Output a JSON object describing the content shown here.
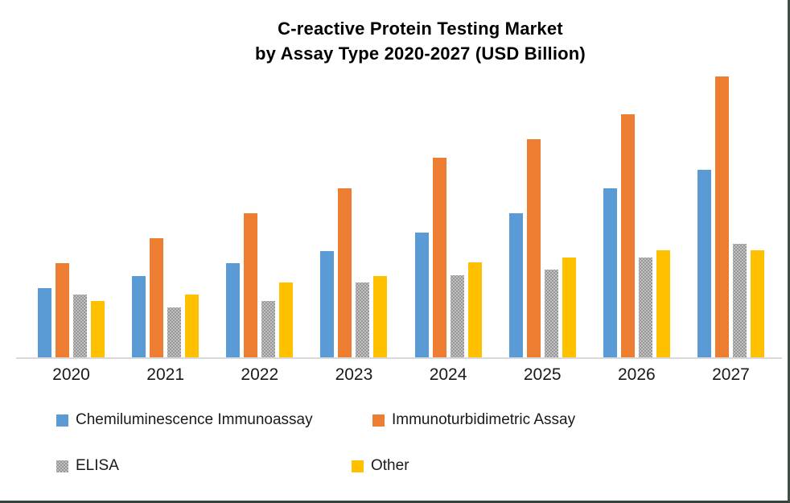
{
  "title": {
    "line1": "C-reactive Protein Testing Market",
    "line2": "by Assay Type 2020-2027 (USD Billion)"
  },
  "chart_data": {
    "type": "bar",
    "title": "C-reactive Protein Testing Market by Assay Type 2020-2027 (USD Billion)",
    "unit": "USD Billion",
    "categories": [
      "2020",
      "2021",
      "2022",
      "2023",
      "2024",
      "2025",
      "2026",
      "2027"
    ],
    "series": [
      {
        "name": "Chemiluminescence Immunoassay",
        "color": "#5B9BD5",
        "pattern": "solid",
        "values": [
          0.86,
          1.01,
          1.17,
          1.32,
          1.55,
          1.79,
          2.1,
          2.33
        ]
      },
      {
        "name": "Immunoturbidimetric Assay",
        "color": "#ED7D31",
        "pattern": "solid",
        "values": [
          1.17,
          1.48,
          1.79,
          2.1,
          2.48,
          2.71,
          3.02,
          3.49
        ]
      },
      {
        "name": "ELISA",
        "color": "#A6A6A6",
        "pattern": "dots",
        "values": [
          0.78,
          0.62,
          0.7,
          0.93,
          1.02,
          1.09,
          1.24,
          1.41
        ]
      },
      {
        "name": "Other",
        "color": "#FFC000",
        "pattern": "solid",
        "values": [
          0.7,
          0.78,
          0.93,
          1.01,
          1.18,
          1.24,
          1.33,
          1.33
        ]
      }
    ],
    "ylim": [
      0,
      3.6
    ],
    "y_axis_labels": [],
    "gridlines": false,
    "legend_position": "bottom",
    "note": "No value-axis labels shown in chart; values estimated from bar heights"
  },
  "colors": {
    "axis_line": "#D9D9D9",
    "frame_border": "#3E4F45",
    "text": "#1a1a1a"
  }
}
